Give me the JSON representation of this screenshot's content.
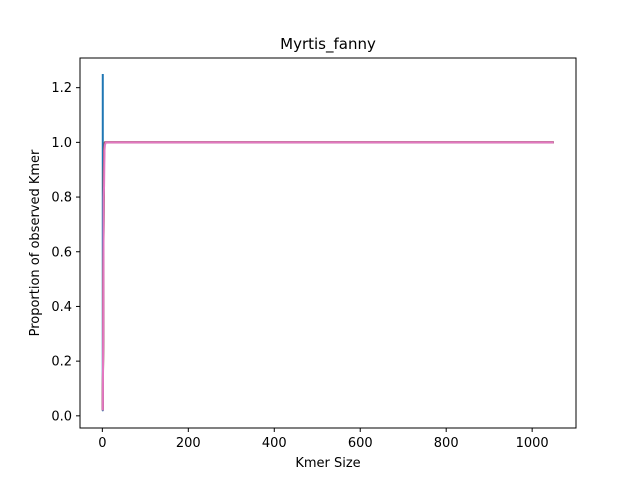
{
  "chart_data": {
    "type": "line",
    "title": "Myrtis_fanny",
    "xlabel": "Kmer Size",
    "ylabel": "Proportion of observed Kmer",
    "xlim": [
      -52,
      1102
    ],
    "ylim": [
      -0.0445,
      1.3085
    ],
    "xticks": [
      0,
      200,
      400,
      600,
      800,
      1000
    ],
    "yticks": [
      0.0,
      0.2,
      0.4,
      0.6,
      0.8,
      1.0,
      1.2
    ],
    "xtick_labels": [
      "0",
      "200",
      "400",
      "600",
      "800",
      "1000"
    ],
    "ytick_labels": [
      "0.0",
      "0.2",
      "0.4",
      "0.6",
      "0.8",
      "1.0",
      "1.2"
    ],
    "grid": false,
    "legend": "none",
    "series": [
      {
        "color": "#1f77b4",
        "x": [
          1,
          1,
          2,
          3,
          4,
          5,
          6,
          8,
          10,
          15,
          20,
          50,
          100,
          200,
          400,
          600,
          800,
          1000,
          1050
        ],
        "y": [
          1.25,
          0.02,
          0.35,
          0.8,
          0.96,
          0.99,
          1.0,
          1.0,
          1.0,
          1.0,
          1.0,
          1.0,
          1.0,
          1.0,
          1.0,
          1.0,
          1.0,
          1.0,
          1.0
        ]
      },
      {
        "color": "#ff7f0e",
        "x": [
          1,
          2,
          3,
          4,
          5,
          6,
          8,
          10,
          15,
          20,
          50,
          100,
          200,
          400,
          600,
          800,
          1000,
          1050
        ],
        "y": [
          0.03,
          0.3,
          0.78,
          0.95,
          0.99,
          1.0,
          1.0,
          1.0,
          1.0,
          1.0,
          1.0,
          1.0,
          1.0,
          1.0,
          1.0,
          1.0,
          1.0,
          1.0
        ]
      },
      {
        "color": "#2ca02c",
        "x": [
          1,
          2,
          3,
          4,
          5,
          6,
          8,
          10,
          15,
          20,
          50,
          100,
          200,
          400,
          600,
          800,
          1000,
          1050
        ],
        "y": [
          0.02,
          0.28,
          0.8,
          0.96,
          0.99,
          1.0,
          1.0,
          1.0,
          1.0,
          1.0,
          1.0,
          1.0,
          1.0,
          1.0,
          1.0,
          1.0,
          1.0,
          1.0
        ]
      },
      {
        "color": "#d62728",
        "x": [
          1,
          2,
          3,
          4,
          5,
          6,
          8,
          10,
          15,
          20,
          50,
          100,
          200,
          400,
          600,
          800,
          1000,
          1050
        ],
        "y": [
          0.025,
          0.32,
          0.82,
          0.96,
          0.99,
          1.0,
          1.0,
          1.0,
          1.0,
          1.0,
          1.0,
          1.0,
          1.0,
          1.0,
          1.0,
          1.0,
          1.0,
          1.0
        ]
      },
      {
        "color": "#9467bd",
        "x": [
          1,
          2,
          3,
          4,
          5,
          6,
          8,
          10,
          15,
          20,
          50,
          100,
          200,
          400,
          600,
          800,
          1000,
          1050
        ],
        "y": [
          0.02,
          0.3,
          0.8,
          0.95,
          0.99,
          1.0,
          1.0,
          1.0,
          1.0,
          1.0,
          1.0,
          1.0,
          1.0,
          1.0,
          1.0,
          1.0,
          1.0,
          1.0
        ]
      },
      {
        "color": "#8c564b",
        "x": [
          1,
          2,
          3,
          4,
          5,
          6,
          8,
          10,
          15,
          20,
          50,
          100,
          200,
          400,
          600,
          800,
          1000,
          1050
        ],
        "y": [
          0.02,
          0.29,
          0.79,
          0.95,
          0.99,
          1.0,
          1.0,
          1.0,
          1.0,
          1.0,
          1.0,
          1.0,
          1.0,
          1.0,
          1.0,
          1.0,
          1.0,
          1.0
        ]
      },
      {
        "color": "#e377c2",
        "x": [
          1,
          2,
          3,
          4,
          5,
          6,
          8,
          10,
          15,
          20,
          50,
          100,
          200,
          400,
          600,
          800,
          1000,
          1050
        ],
        "y": [
          0.02,
          0.3,
          0.8,
          0.84,
          0.97,
          0.99,
          1.0,
          1.0,
          1.0,
          1.0,
          1.0,
          1.0,
          1.0,
          1.0,
          1.0,
          1.0,
          1.0,
          1.0
        ]
      }
    ]
  }
}
